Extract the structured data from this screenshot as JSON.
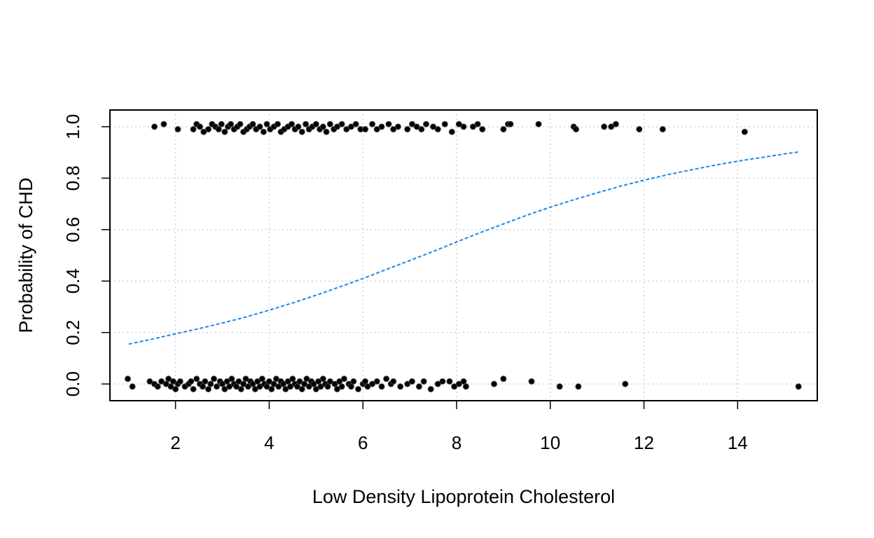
{
  "chart_data": {
    "type": "scatter",
    "title": "",
    "xlabel": "Low Density Lipoprotein Cholesterol",
    "ylabel": "Probability of CHD",
    "xlim": [
      0.6,
      15.7
    ],
    "ylim": [
      -0.065,
      1.065
    ],
    "x_ticks": [
      2,
      4,
      6,
      8,
      10,
      12,
      14
    ],
    "y_ticks": [
      0.0,
      0.2,
      0.4,
      0.6,
      0.8,
      1.0
    ],
    "x_tick_labels": [
      "2",
      "4",
      "6",
      "8",
      "10",
      "12",
      "14"
    ],
    "y_tick_labels": [
      "0.0",
      "0.2",
      "0.4",
      "0.6",
      "0.8",
      "1.0"
    ],
    "grid": true,
    "legend": "none",
    "series": [
      {
        "kind": "points",
        "color": "#000000",
        "x": [
          0.98,
          1.08,
          1.45,
          1.55,
          1.62,
          1.7,
          1.8,
          1.85,
          1.9,
          1.95,
          2.0,
          2.05,
          2.1,
          2.2,
          2.28,
          2.33,
          2.38,
          2.45,
          2.52,
          2.58,
          2.63,
          2.7,
          2.75,
          2.82,
          2.88,
          2.95,
          3.0,
          3.05,
          3.1,
          3.15,
          3.2,
          3.25,
          3.3,
          3.35,
          3.4,
          3.45,
          3.5,
          3.55,
          3.6,
          3.65,
          3.7,
          3.75,
          3.8,
          3.85,
          3.9,
          3.95,
          4.0,
          4.05,
          4.1,
          4.15,
          4.2,
          4.25,
          4.3,
          4.35,
          4.4,
          4.45,
          4.5,
          4.55,
          4.6,
          4.65,
          4.7,
          4.75,
          4.8,
          4.85,
          4.9,
          4.95,
          5.0,
          5.05,
          5.1,
          5.15,
          5.2,
          5.25,
          5.3,
          5.4,
          5.45,
          5.5,
          5.55,
          5.6,
          5.7,
          5.75,
          5.8,
          5.9,
          6.0,
          6.05,
          6.1,
          6.2,
          6.3,
          6.4,
          6.5,
          6.6,
          6.65,
          6.8,
          6.95,
          7.05,
          7.2,
          7.3,
          7.45,
          7.6,
          7.7,
          7.85,
          7.95,
          8.05,
          8.15,
          8.2,
          8.8,
          9.0,
          9.6,
          10.2,
          10.6,
          11.6,
          15.3
        ],
        "y": [
          0.02,
          -0.01,
          0.01,
          0.0,
          -0.01,
          0.01,
          0.0,
          0.02,
          -0.01,
          0.01,
          -0.02,
          0.0,
          0.01,
          -0.01,
          0.0,
          0.01,
          -0.02,
          0.02,
          0.0,
          -0.01,
          0.01,
          -0.02,
          0.0,
          0.02,
          -0.01,
          0.01,
          0.0,
          -0.02,
          0.01,
          -0.01,
          0.02,
          0.0,
          -0.01,
          0.01,
          -0.02,
          0.0,
          0.02,
          -0.01,
          0.01,
          0.0,
          -0.02,
          0.01,
          -0.01,
          0.02,
          0.0,
          -0.01,
          0.01,
          -0.02,
          0.0,
          0.02,
          -0.01,
          0.01,
          0.0,
          -0.02,
          0.01,
          -0.01,
          0.02,
          0.0,
          -0.01,
          0.01,
          -0.02,
          0.0,
          0.02,
          -0.01,
          0.01,
          0.0,
          -0.02,
          0.01,
          -0.01,
          0.02,
          0.0,
          -0.01,
          0.01,
          0.0,
          -0.02,
          0.01,
          -0.01,
          0.02,
          0.0,
          -0.01,
          0.01,
          -0.02,
          0.0,
          0.01,
          -0.01,
          0.0,
          0.01,
          -0.01,
          0.02,
          0.0,
          0.01,
          -0.01,
          0.0,
          0.01,
          -0.01,
          0.01,
          -0.02,
          0.0,
          0.01,
          0.01,
          -0.01,
          0.0,
          0.01,
          -0.01,
          0.0,
          0.02,
          0.01,
          -0.01,
          -0.01,
          0.0,
          -0.01
        ]
      },
      {
        "kind": "points",
        "color": "#000000",
        "x": [
          1.55,
          1.75,
          2.05,
          2.38,
          2.45,
          2.52,
          2.6,
          2.7,
          2.78,
          2.85,
          2.92,
          2.98,
          3.05,
          3.12,
          3.18,
          3.25,
          3.32,
          3.38,
          3.45,
          3.52,
          3.58,
          3.65,
          3.72,
          3.8,
          3.88,
          3.95,
          4.02,
          4.1,
          4.18,
          4.25,
          4.32,
          4.4,
          4.48,
          4.55,
          4.62,
          4.7,
          4.78,
          4.85,
          4.92,
          5.0,
          5.08,
          5.15,
          5.22,
          5.3,
          5.38,
          5.45,
          5.55,
          5.65,
          5.75,
          5.85,
          5.95,
          6.05,
          6.2,
          6.3,
          6.4,
          6.55,
          6.65,
          6.75,
          6.95,
          7.05,
          7.15,
          7.25,
          7.35,
          7.5,
          7.6,
          7.75,
          7.9,
          8.05,
          8.15,
          8.35,
          8.45,
          8.55,
          9.0,
          9.1,
          9.15,
          9.75,
          10.5,
          10.55,
          11.15,
          11.3,
          11.4,
          11.9,
          12.4,
          14.15
        ],
        "y": [
          1.0,
          1.01,
          0.99,
          0.99,
          1.01,
          1.0,
          0.98,
          0.99,
          1.01,
          1.0,
          0.99,
          1.01,
          0.98,
          1.0,
          1.01,
          0.99,
          1.0,
          1.01,
          0.98,
          0.99,
          1.0,
          1.01,
          0.99,
          1.0,
          0.98,
          1.01,
          0.99,
          1.0,
          1.01,
          0.98,
          0.99,
          1.0,
          1.01,
          0.99,
          1.0,
          0.98,
          1.01,
          0.99,
          1.0,
          1.01,
          0.99,
          1.0,
          0.98,
          1.01,
          0.99,
          1.0,
          1.01,
          0.99,
          1.0,
          1.01,
          0.99,
          0.99,
          1.01,
          0.99,
          1.0,
          1.01,
          0.99,
          1.0,
          0.99,
          1.01,
          1.0,
          0.99,
          1.01,
          1.0,
          0.99,
          1.01,
          0.98,
          1.01,
          1.0,
          1.0,
          1.01,
          0.99,
          0.99,
          1.01,
          1.01,
          1.01,
          1.0,
          0.99,
          1.0,
          1.0,
          1.01,
          0.99,
          0.99,
          0.98
        ]
      },
      {
        "kind": "line",
        "style": "dashed",
        "color": "#1E88E5",
        "x": [
          1.0,
          1.5,
          2.0,
          2.5,
          3.0,
          3.5,
          4.0,
          4.5,
          5.0,
          5.5,
          6.0,
          6.5,
          7.0,
          7.5,
          8.0,
          8.5,
          9.0,
          9.5,
          10.0,
          10.5,
          11.0,
          11.5,
          12.0,
          12.5,
          13.0,
          13.5,
          14.0,
          14.5,
          15.0,
          15.3
        ],
        "y": [
          0.155,
          0.174,
          0.195,
          0.215,
          0.237,
          0.26,
          0.287,
          0.315,
          0.345,
          0.377,
          0.41,
          0.445,
          0.48,
          0.515,
          0.552,
          0.588,
          0.622,
          0.656,
          0.687,
          0.716,
          0.743,
          0.769,
          0.792,
          0.813,
          0.832,
          0.85,
          0.866,
          0.88,
          0.894,
          0.902
        ]
      }
    ]
  }
}
